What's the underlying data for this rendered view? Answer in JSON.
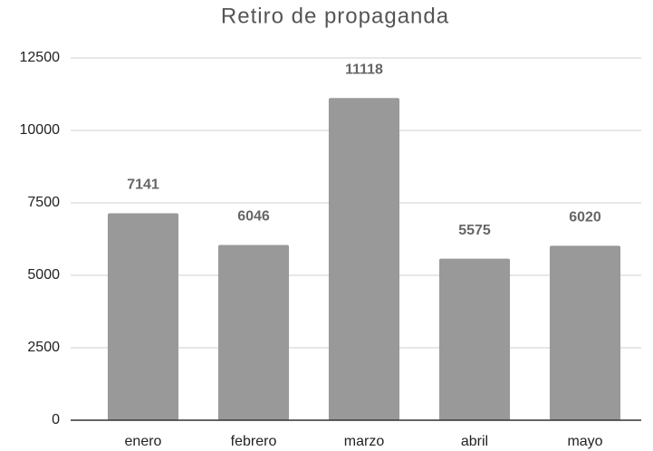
{
  "chart_data": {
    "type": "bar",
    "title": "Retiro de propaganda",
    "categories": [
      "enero",
      "febrero",
      "marzo",
      "abril",
      "mayo"
    ],
    "values": [
      7141,
      6046,
      11118,
      5575,
      6020
    ],
    "color": "#999999",
    "ylim": [
      0,
      12500
    ],
    "yticks": [
      0,
      2500,
      5000,
      7500,
      10000,
      12500
    ],
    "grid": true
  }
}
